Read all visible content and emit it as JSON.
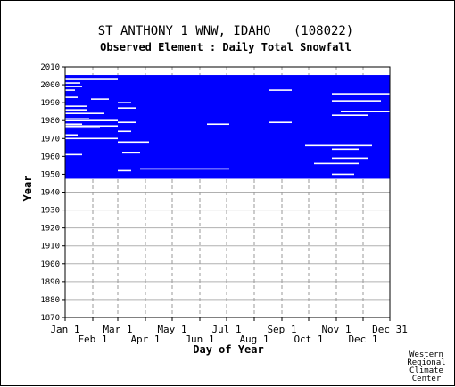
{
  "chart_data": {
    "type": "heatmap",
    "title": "ST ANTHONY 1 WNW, IDAHO   (108022)",
    "subtitle": "Observed Element : Daily Total Snowfall",
    "xlabel": "Day of Year",
    "ylabel": "Year",
    "xlim": [
      1,
      365
    ],
    "ylim": [
      1870,
      2010
    ],
    "x_ticks_top": [
      {
        "label": "Jan 1",
        "day": 1
      },
      {
        "label": "Mar 1",
        "day": 60
      },
      {
        "label": "May 1",
        "day": 121
      },
      {
        "label": "Jul 1",
        "day": 182
      },
      {
        "label": "Sep 1",
        "day": 244
      },
      {
        "label": "Nov 1",
        "day": 305
      },
      {
        "label": "Dec 31",
        "day": 365
      }
    ],
    "x_ticks_bottom": [
      {
        "label": "Feb 1",
        "day": 32
      },
      {
        "label": "Apr 1",
        "day": 91
      },
      {
        "label": "Jun 1",
        "day": 152
      },
      {
        "label": "Aug 1",
        "day": 213
      },
      {
        "label": "Oct 1",
        "day": 274
      },
      {
        "label": "Dec 1",
        "day": 335
      }
    ],
    "y_ticks": [
      1870,
      1880,
      1890,
      1900,
      1910,
      1920,
      1930,
      1940,
      1950,
      1960,
      1970,
      1980,
      1990,
      2000,
      2010
    ],
    "data_color": "#0000ff",
    "grid": true,
    "data_block": {
      "year_start": 1948,
      "year_end": 2005,
      "day_start": 1,
      "day_end": 365
    },
    "gaps": [
      {
        "year": 2003,
        "day_start": 1,
        "day_end": 60
      },
      {
        "year": 2001,
        "day_start": 1,
        "day_end": 18
      },
      {
        "year": 1999,
        "day_start": 1,
        "day_end": 20
      },
      {
        "year": 1997,
        "day_start": 1,
        "day_end": 12
      },
      {
        "year": 1995,
        "day_start": 300,
        "day_end": 365
      },
      {
        "year": 1993,
        "day_start": 1,
        "day_end": 15
      },
      {
        "year": 1992,
        "day_start": 30,
        "day_end": 50
      },
      {
        "year": 1991,
        "day_start": 300,
        "day_end": 355
      },
      {
        "year": 1990,
        "day_start": 60,
        "day_end": 75
      },
      {
        "year": 1988,
        "day_start": 1,
        "day_end": 25
      },
      {
        "year": 1987,
        "day_start": 60,
        "day_end": 80
      },
      {
        "year": 1986,
        "day_start": 1,
        "day_end": 25
      },
      {
        "year": 1985,
        "day_start": 310,
        "day_end": 365
      },
      {
        "year": 1984,
        "day_start": 1,
        "day_end": 45
      },
      {
        "year": 1983,
        "day_start": 300,
        "day_end": 340
      },
      {
        "year": 1981,
        "day_start": 1,
        "day_end": 28
      },
      {
        "year": 1980,
        "day_start": 1,
        "day_end": 60
      },
      {
        "year": 1979,
        "day_start": 60,
        "day_end": 80
      },
      {
        "year": 1978,
        "day_start": 1,
        "day_end": 20
      },
      {
        "year": 1977,
        "day_start": 1,
        "day_end": 60
      },
      {
        "year": 1976,
        "day_start": 1,
        "day_end": 40
      },
      {
        "year": 1974,
        "day_start": 60,
        "day_end": 75
      },
      {
        "year": 1972,
        "day_start": 1,
        "day_end": 15
      },
      {
        "year": 1970,
        "day_start": 1,
        "day_end": 60
      },
      {
        "year": 1968,
        "day_start": 60,
        "day_end": 95
      },
      {
        "year": 1966,
        "day_start": 270,
        "day_end": 345
      },
      {
        "year": 1964,
        "day_start": 300,
        "day_end": 330
      },
      {
        "year": 1962,
        "day_start": 65,
        "day_end": 85
      },
      {
        "year": 1961,
        "day_start": 1,
        "day_end": 20
      },
      {
        "year": 1959,
        "day_start": 300,
        "day_end": 340
      },
      {
        "year": 1956,
        "day_start": 280,
        "day_end": 330
      },
      {
        "year": 1953,
        "day_start": 85,
        "day_end": 185
      },
      {
        "year": 1952,
        "day_start": 60,
        "day_end": 75
      },
      {
        "year": 1950,
        "day_start": 300,
        "day_end": 325
      }
    ],
    "summer_gaps": [
      {
        "year": 1997,
        "day_start": 230,
        "day_end": 255
      },
      {
        "year": 1979,
        "day_start": 230,
        "day_end": 255
      },
      {
        "year": 1978,
        "day_start": 160,
        "day_end": 185
      }
    ]
  },
  "credit": [
    "Western",
    "Regional",
    "Climate",
    "Center"
  ]
}
